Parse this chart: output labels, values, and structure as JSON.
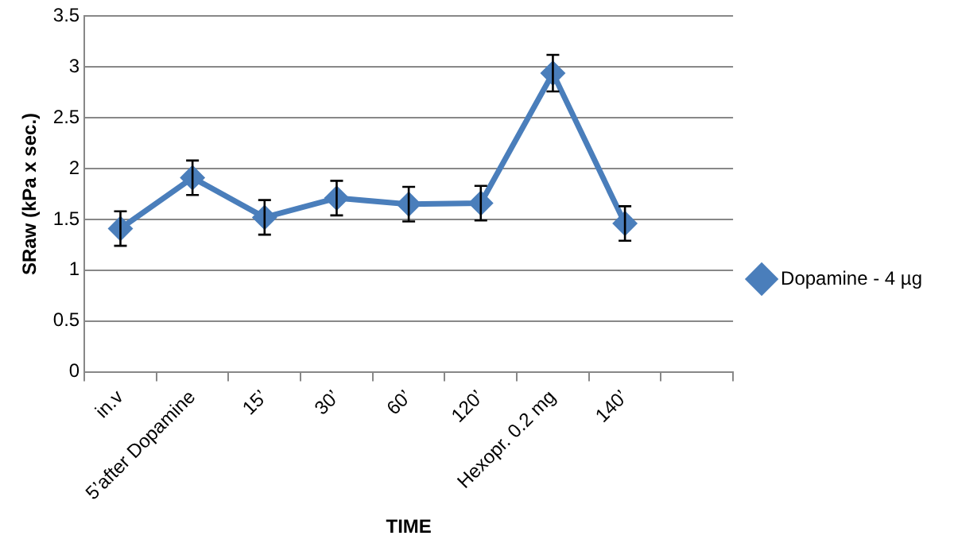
{
  "chart_data": {
    "type": "line",
    "xlabel": "TIME",
    "ylabel": "SRaw (kPa x sec.)",
    "categories": [
      "in.v",
      "5’after Dopamine",
      "15’",
      "30’",
      "60’",
      "120’",
      "Hexopr. 0.2 mg",
      "140’",
      null
    ],
    "series": [
      {
        "name": "Dopamine - 4 µg",
        "color": "#4a7ebb",
        "values": [
          1.41,
          1.91,
          1.52,
          1.71,
          1.65,
          1.66,
          2.94,
          1.46,
          null
        ],
        "errors": [
          0.17,
          0.17,
          0.17,
          0.17,
          0.17,
          0.17,
          0.18,
          0.17,
          null
        ]
      }
    ],
    "ylim": [
      0,
      3.5
    ],
    "yticks": [
      0,
      0.5,
      1,
      1.5,
      2,
      2.5,
      3,
      3.5
    ],
    "grid": "y",
    "legend": "right",
    "marker": "diamond",
    "line_style": "solid"
  }
}
